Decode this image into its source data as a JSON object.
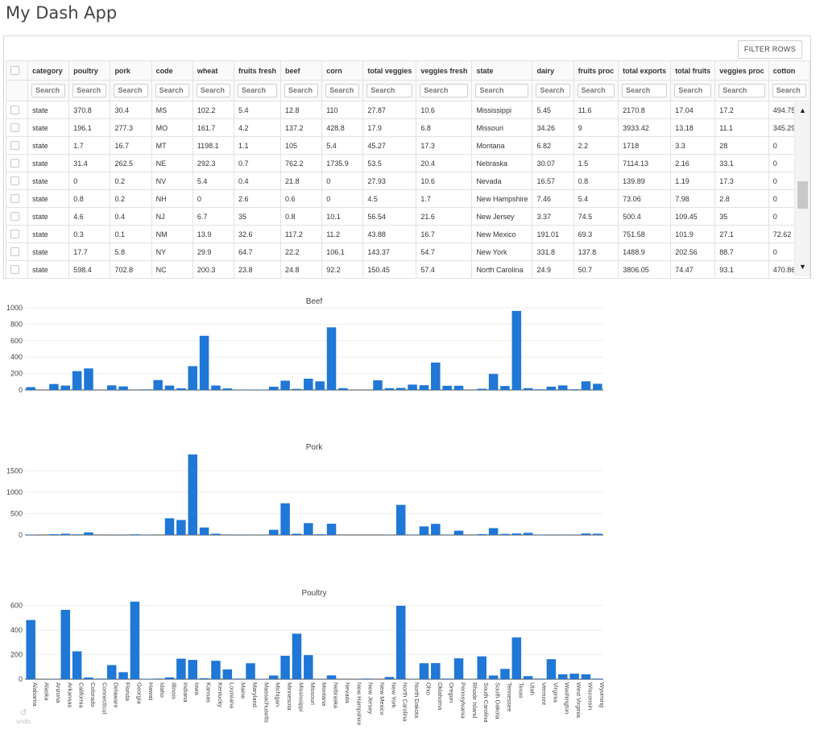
{
  "app": {
    "title": "My Dash App"
  },
  "table": {
    "filter_button_label": "FILTER ROWS",
    "search_placeholder": "Search",
    "columns": [
      "category",
      "poultry",
      "pork",
      "code",
      "wheat",
      "fruits fresh",
      "beef",
      "corn",
      "total veggies",
      "veggies fresh",
      "state",
      "dairy",
      "fruits proc",
      "total exports",
      "total fruits",
      "veggies proc",
      "cotton"
    ],
    "rows": [
      [
        "state",
        "370.8",
        "30.4",
        "MS",
        "102.2",
        "5.4",
        "12.8",
        "110",
        "27.87",
        "10.6",
        "Mississippi",
        "5.45",
        "11.6",
        "2170.8",
        "17.04",
        "17.2",
        "494.75"
      ],
      [
        "state",
        "196.1",
        "277.3",
        "MO",
        "161.7",
        "4.2",
        "137.2",
        "428.8",
        "17.9",
        "6.8",
        "Missouri",
        "34.26",
        "9",
        "3933.42",
        "13.18",
        "11.1",
        "345.29"
      ],
      [
        "state",
        "1.7",
        "16.7",
        "MT",
        "1198.1",
        "1.1",
        "105",
        "5.4",
        "45.27",
        "17.3",
        "Montana",
        "6.82",
        "2.2",
        "1718",
        "3.3",
        "28",
        "0"
      ],
      [
        "state",
        "31.4",
        "262.5",
        "NE",
        "292.3",
        "0.7",
        "762.2",
        "1735.9",
        "53.5",
        "20.4",
        "Nebraska",
        "30.07",
        "1.5",
        "7114.13",
        "2.16",
        "33.1",
        "0"
      ],
      [
        "state",
        "0",
        "0.2",
        "NV",
        "5.4",
        "0.4",
        "21.8",
        "0",
        "27.93",
        "10.6",
        "Nevada",
        "16.57",
        "0.8",
        "139.89",
        "1.19",
        "17.3",
        "0"
      ],
      [
        "state",
        "0.8",
        "0.2",
        "NH",
        "0",
        "2.6",
        "0.6",
        "0",
        "4.5",
        "1.7",
        "New Hampshire",
        "7.46",
        "5.4",
        "73.06",
        "7.98",
        "2.8",
        "0"
      ],
      [
        "state",
        "4.6",
        "0.4",
        "NJ",
        "6.7",
        "35",
        "0.8",
        "10.1",
        "56.54",
        "21.6",
        "New Jersey",
        "3.37",
        "74.5",
        "500.4",
        "109.45",
        "35",
        "0"
      ],
      [
        "state",
        "0.3",
        "0.1",
        "NM",
        "13.9",
        "32.6",
        "117.2",
        "11.2",
        "43.88",
        "16.7",
        "New Mexico",
        "191.01",
        "69.3",
        "751.58",
        "101.9",
        "27.1",
        "72.62"
      ],
      [
        "state",
        "17.7",
        "5.8",
        "NY",
        "29.9",
        "64.7",
        "22.2",
        "106.1",
        "143.37",
        "54.7",
        "New York",
        "331.8",
        "137.8",
        "1488.9",
        "202.56",
        "88.7",
        "0"
      ],
      [
        "state",
        "598.4",
        "702.8",
        "NC",
        "200.3",
        "23.8",
        "24.8",
        "92.2",
        "150.45",
        "57.4",
        "North Carolina",
        "24.9",
        "50.7",
        "3806.05",
        "74.47",
        "93.1",
        "470.86"
      ]
    ]
  },
  "charts": {
    "states": [
      "Alabama",
      "Alaska",
      "Arizona",
      "Arkansas",
      "California",
      "Colorado",
      "Connecticut",
      "Delaware",
      "Florida",
      "Georgia",
      "Hawaii",
      "Idaho",
      "Illinois",
      "Indiana",
      "Iowa",
      "Kansas",
      "Kentucky",
      "Louisiana",
      "Maine",
      "Maryland",
      "Massachusetts",
      "Michigan",
      "Minnesota",
      "Mississippi",
      "Missouri",
      "Montana",
      "Nebraska",
      "Nevada",
      "New Hampshire",
      "New Jersey",
      "New Mexico",
      "New York",
      "North Carolina",
      "North Dakota",
      "Ohio",
      "Oklahoma",
      "Oregon",
      "Pennsylvania",
      "Rhode Island",
      "South Carolina",
      "South Dakota",
      "Tennessee",
      "Texas",
      "Utah",
      "Vermont",
      "Virginia",
      "Washington",
      "West Virginia",
      "Wisconsin",
      "Wyoming"
    ],
    "bar_color": "#1f77d6",
    "items": [
      {
        "title": "Beef",
        "yticks": [
          0,
          200,
          400,
          600,
          800,
          1000
        ],
        "ymax": 1000,
        "values": [
          34,
          0,
          72,
          53,
          229,
          262,
          1,
          56,
          43,
          1,
          7,
          120,
          53,
          21,
          290,
          659,
          54,
          19,
          5,
          5,
          5,
          39,
          113,
          13,
          137,
          105,
          762,
          22,
          1,
          1,
          117,
          22,
          25,
          65,
          57,
          333,
          51,
          51,
          1,
          15,
          195,
          48,
          962,
          22,
          8,
          40,
          55,
          8,
          105,
          75
        ]
      },
      {
        "title": "Pork",
        "yticks": [
          0,
          500,
          1000,
          1500
        ],
        "ymax": 1900,
        "values": [
          10,
          0,
          18,
          30,
          15,
          60,
          1,
          4,
          3,
          15,
          8,
          2,
          390,
          350,
          1880,
          175,
          30,
          2,
          5,
          6,
          5,
          120,
          740,
          30,
          277,
          17,
          262,
          0,
          0,
          0,
          0,
          6,
          703,
          10,
          200,
          260,
          5,
          100,
          0,
          20,
          160,
          25,
          35,
          50,
          10,
          5,
          5,
          5,
          35,
          30
        ]
      },
      {
        "title": "Poultry",
        "yticks": [
          0,
          200,
          400,
          600
        ],
        "ymax": 650,
        "values": [
          482,
          1,
          2,
          565,
          227,
          14,
          5,
          115,
          57,
          632,
          3,
          5,
          15,
          167,
          157,
          8,
          150,
          80,
          5,
          130,
          3,
          30,
          191,
          371,
          196,
          2,
          31,
          0,
          1,
          5,
          0,
          18,
          598,
          2,
          130,
          131,
          5,
          170,
          2,
          186,
          30,
          84,
          340,
          25,
          5,
          163,
          40,
          45,
          40,
          5
        ]
      }
    ]
  },
  "toolbar": {
    "undo_label": "undo"
  }
}
